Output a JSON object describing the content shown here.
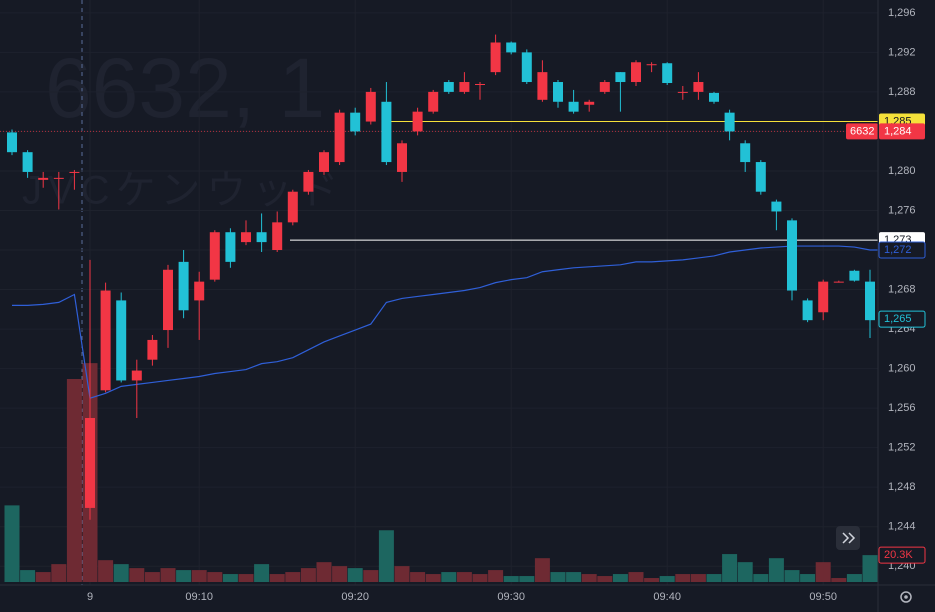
{
  "chart_data": {
    "type": "candlestick",
    "watermark": [
      "6632, 1",
      "JVCケンウッド"
    ],
    "categories": [
      null,
      null,
      null,
      null,
      null,
      "9",
      null,
      null,
      null,
      null,
      null,
      null,
      "09:10",
      null,
      null,
      null,
      null,
      null,
      null,
      null,
      null,
      null,
      "09:20",
      null,
      null,
      null,
      null,
      null,
      null,
      null,
      null,
      null,
      "09:30",
      null,
      null,
      null,
      null,
      null,
      null,
      null,
      null,
      null,
      "09:40",
      null,
      null,
      null,
      null,
      null,
      null,
      null,
      null,
      null,
      "09:50",
      null,
      null,
      null
    ],
    "ohlc": [
      [
        1283.9,
        1284.2,
        1281.6,
        1281.9
      ],
      [
        1281.9,
        1282.1,
        1279.3,
        1279.9
      ],
      [
        1279.1,
        1279.9,
        1278.3,
        1279.3
      ],
      [
        1279.3,
        1279.9,
        1276.1,
        1279.3
      ],
      [
        1279.9,
        1280.1,
        1278.1,
        1279.9
      ],
      [
        1245.9,
        1271.0,
        1244.7,
        1255.0
      ],
      [
        1257.8,
        1268.7,
        1257.6,
        1267.9
      ],
      [
        1266.9,
        1267.7,
        1258.6,
        1258.8
      ],
      [
        1258.8,
        1260.9,
        1255.0,
        1259.8
      ],
      [
        1260.9,
        1263.4,
        1260.3,
        1262.9
      ],
      [
        1263.9,
        1270.5,
        1262.1,
        1270.0
      ],
      [
        1270.8,
        1272.0,
        1265.1,
        1265.9
      ],
      [
        1266.9,
        1269.8,
        1262.9,
        1268.8
      ],
      [
        1269.0,
        1274.0,
        1268.8,
        1273.8
      ],
      [
        1273.8,
        1274.2,
        1270.2,
        1270.8
      ],
      [
        1272.8,
        1275.0,
        1272.5,
        1273.8
      ],
      [
        1273.8,
        1275.7,
        1271.8,
        1272.8
      ],
      [
        1272.0,
        1275.9,
        1271.8,
        1274.8
      ],
      [
        1274.8,
        1278.1,
        1274.5,
        1277.9
      ],
      [
        1277.9,
        1280.1,
        1277.6,
        1279.9
      ],
      [
        1279.9,
        1282.1,
        1279.6,
        1281.9
      ],
      [
        1280.9,
        1286.2,
        1280.6,
        1285.9
      ],
      [
        1285.9,
        1286.4,
        1283.6,
        1284.0
      ],
      [
        1285.0,
        1288.4,
        1284.7,
        1288.0
      ],
      [
        1287.0,
        1289.0,
        1280.6,
        1280.9
      ],
      [
        1279.9,
        1283.1,
        1278.9,
        1282.8
      ],
      [
        1284.0,
        1286.4,
        1283.6,
        1286.0
      ],
      [
        1286.0,
        1288.2,
        1285.8,
        1288.0
      ],
      [
        1289.0,
        1289.2,
        1287.8,
        1288.0
      ],
      [
        1288.0,
        1290.0,
        1287.8,
        1289.0
      ],
      [
        1288.8,
        1289.0,
        1287.2,
        1288.8
      ],
      [
        1290.0,
        1293.8,
        1289.7,
        1293.0
      ],
      [
        1293.0,
        1293.1,
        1291.8,
        1292.0
      ],
      [
        1292.0,
        1292.3,
        1288.8,
        1289.0
      ],
      [
        1287.2,
        1291.2,
        1287.0,
        1290.0
      ],
      [
        1289.0,
        1289.2,
        1286.4,
        1287.0
      ],
      [
        1287.0,
        1288.2,
        1285.8,
        1286.0
      ],
      [
        1286.7,
        1287.2,
        1286.0,
        1287.0
      ],
      [
        1288.0,
        1289.2,
        1287.8,
        1289.0
      ],
      [
        1290.0,
        1290.0,
        1286.0,
        1289.0
      ],
      [
        1289.0,
        1291.2,
        1288.6,
        1291.0
      ],
      [
        1290.8,
        1291.0,
        1290.0,
        1290.8
      ],
      [
        1290.9,
        1291.0,
        1288.7,
        1288.9
      ],
      [
        1288.0,
        1288.6,
        1287.2,
        1288.0
      ],
      [
        1288.0,
        1290.0,
        1287.2,
        1289.0
      ],
      [
        1287.9,
        1288.0,
        1286.8,
        1287.0
      ],
      [
        1285.9,
        1286.2,
        1283.1,
        1284.0
      ],
      [
        1282.8,
        1283.1,
        1279.9,
        1280.9
      ],
      [
        1280.9,
        1281.1,
        1277.6,
        1277.9
      ],
      [
        1276.9,
        1277.1,
        1274.0,
        1275.9
      ],
      [
        1275.0,
        1275.2,
        1266.9,
        1267.9
      ],
      [
        1266.9,
        1267.1,
        1264.7,
        1264.9
      ],
      [
        1265.7,
        1269.0,
        1264.9,
        1268.8
      ],
      [
        1268.8,
        1268.9,
        1268.7,
        1268.8
      ],
      [
        1269.9,
        1270.0,
        1268.8,
        1268.9
      ],
      [
        1268.8,
        1270.0,
        1263.1,
        1264.9
      ]
    ],
    "up_color": "#f23645",
    "down_color": "#22c1d6",
    "series": [
      {
        "color": "#2f5fd8",
        "values": [
          1266.4,
          1266.4,
          1266.5,
          1266.7,
          1267.5,
          1257.0,
          1257.5,
          1258.2,
          1258.4,
          1258.6,
          1258.8,
          1259.0,
          1259.2,
          1259.5,
          1259.7,
          1259.9,
          1260.5,
          1260.7,
          1261.1,
          1261.9,
          1262.7,
          1263.3,
          1263.9,
          1264.5,
          1266.7,
          1267.1,
          1267.3,
          1267.5,
          1267.7,
          1267.9,
          1268.2,
          1268.7,
          1269.0,
          1269.2,
          1269.8,
          1270.0,
          1270.2,
          1270.3,
          1270.4,
          1270.5,
          1270.8,
          1270.8,
          1270.9,
          1271.0,
          1271.2,
          1271.4,
          1271.8,
          1272.0,
          1272.2,
          1272.3,
          1272.4,
          1272.4,
          1272.4,
          1272.4,
          1272.3,
          1272.0
        ]
      }
    ],
    "volume": {
      "values": [
        57.9,
        9,
        7.5,
        13.5,
        153.4,
        165.4,
        16.5,
        13.5,
        10.5,
        7.5,
        10.5,
        9,
        9,
        7.5,
        6,
        6,
        13.5,
        6,
        7.5,
        10.5,
        15,
        12,
        10.5,
        9,
        39.1,
        12,
        7.5,
        6,
        7.5,
        7.5,
        6,
        9,
        4.5,
        4.5,
        18,
        7.5,
        7.5,
        6,
        4.5,
        6,
        7.5,
        3,
        4.5,
        6,
        6,
        6,
        21.1,
        15,
        6,
        18,
        9,
        6,
        15,
        3,
        6,
        20.3
      ],
      "ylim": [
        0,
        439.8
      ],
      "up_color": "#6e2a33",
      "down_color": "#1d6660",
      "last_label": {
        "value": 20.3,
        "label": "20.3K"
      }
    },
    "ylim": [
      1238.1,
      1297.3
    ],
    "yticks": [
      {
        "value": 1296,
        "label": "1,296"
      },
      {
        "value": 1292,
        "label": "1,292"
      },
      {
        "value": 1288,
        "label": "1,288"
      },
      {
        "value": 1284,
        "label": "1,284"
      },
      {
        "value": 1280,
        "label": "1,280"
      },
      {
        "value": 1276,
        "label": "1,276"
      },
      {
        "value": 1272,
        "label": "1,272"
      },
      {
        "value": 1268,
        "label": "1,268"
      },
      {
        "value": 1264,
        "label": "1,264"
      },
      {
        "value": 1260,
        "label": "1,260"
      },
      {
        "value": 1256,
        "label": "1,256"
      },
      {
        "value": 1252,
        "label": "1,252"
      },
      {
        "value": 1248,
        "label": "1,248"
      },
      {
        "value": 1244,
        "label": "1,244"
      },
      {
        "value": 1240,
        "label": "1,240"
      }
    ],
    "grid": true,
    "price_lines": [
      {
        "value": 1285,
        "label": "1,285",
        "color": "#f5e13a"
      },
      {
        "value": 1273,
        "label": "1,273",
        "color": "#ffffff"
      },
      {
        "value": 1284,
        "label": "1,284",
        "tag": "6632",
        "color": "#f23645"
      }
    ],
    "price_tags": [
      {
        "value": 1272,
        "label": "1,272",
        "color": "#2f5fd8"
      },
      {
        "value": 1265,
        "label": "1,265",
        "color": "#22c1d6"
      }
    ]
  }
}
